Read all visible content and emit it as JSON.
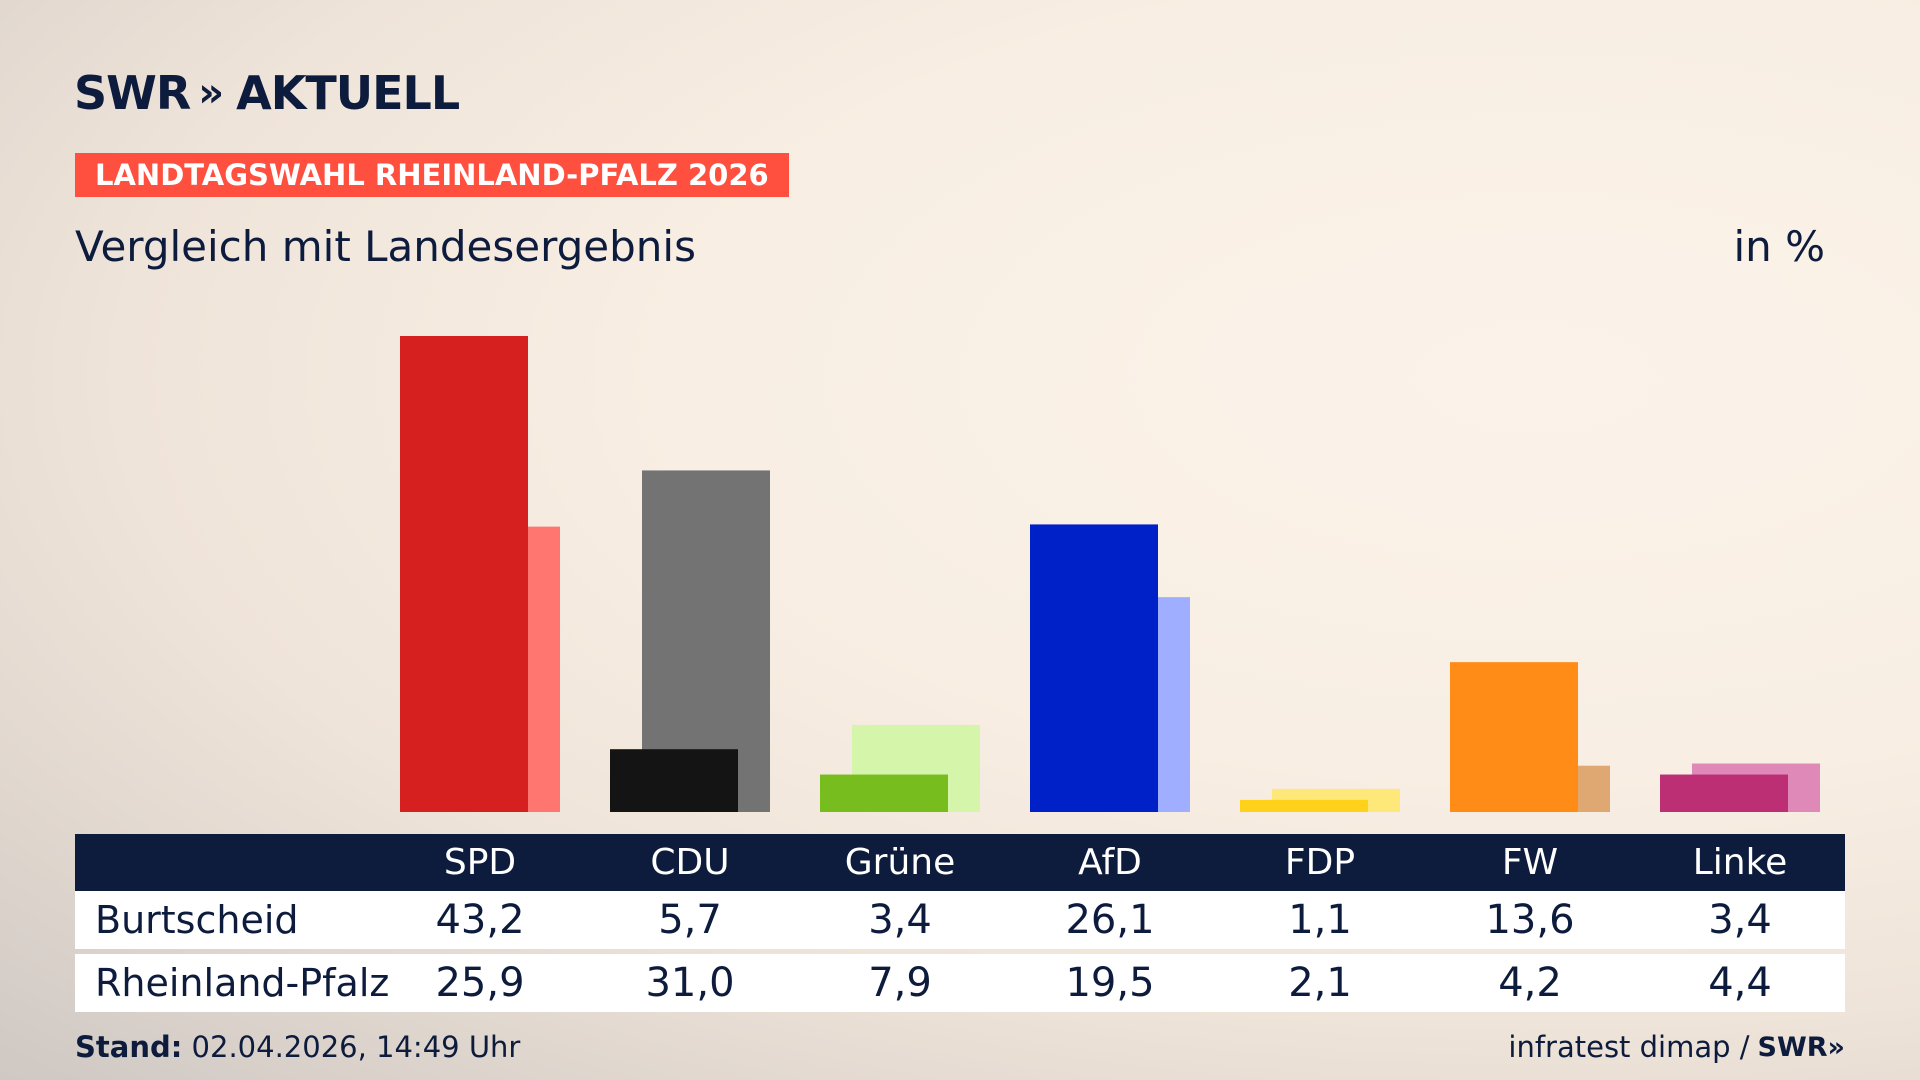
{
  "header": {
    "logo_text": "SWR",
    "logo_chevrons": "»",
    "logo_suffix": "AKTUELL",
    "tag": "LANDTAGSWAHL RHEINLAND-PFALZ 2026",
    "subtitle": "Vergleich mit Landesergebnis",
    "unit": "in %"
  },
  "chart_data": {
    "type": "bar",
    "categories": [
      "SPD",
      "CDU",
      "Grüne",
      "AfD",
      "FDP",
      "FW",
      "Linke"
    ],
    "series": [
      {
        "name": "Burtscheid",
        "values": [
          43.2,
          5.7,
          3.4,
          26.1,
          1.1,
          13.6,
          3.4
        ],
        "display": [
          "43,2",
          "5,7",
          "3,4",
          "26,1",
          "1,1",
          "13,6",
          "3,4"
        ]
      },
      {
        "name": "Rheinland-Pfalz",
        "values": [
          25.9,
          31.0,
          7.9,
          19.5,
          2.1,
          4.2,
          4.4
        ],
        "display": [
          "25,9",
          "31,0",
          "7,9",
          "19,5",
          "2,1",
          "4,2",
          "4,4"
        ]
      }
    ],
    "colors_primary": [
      "#d61f1f",
      "#141414",
      "#78bd1e",
      "#0021c7",
      "#ffd11a",
      "#ff8c16",
      "#bd2f75"
    ],
    "colors_secondary": [
      "#ff7570",
      "#737373",
      "#d4f5aa",
      "#a0aeff",
      "#ffe87a",
      "#dfa872",
      "#df89b8"
    ],
    "ylim": [
      0,
      45
    ]
  },
  "footer": {
    "stand_label": "Stand:",
    "stand_value": "02.04.2026, 14:49 Uhr",
    "source": "infratest dimap /",
    "source_logo": "SWR»"
  }
}
